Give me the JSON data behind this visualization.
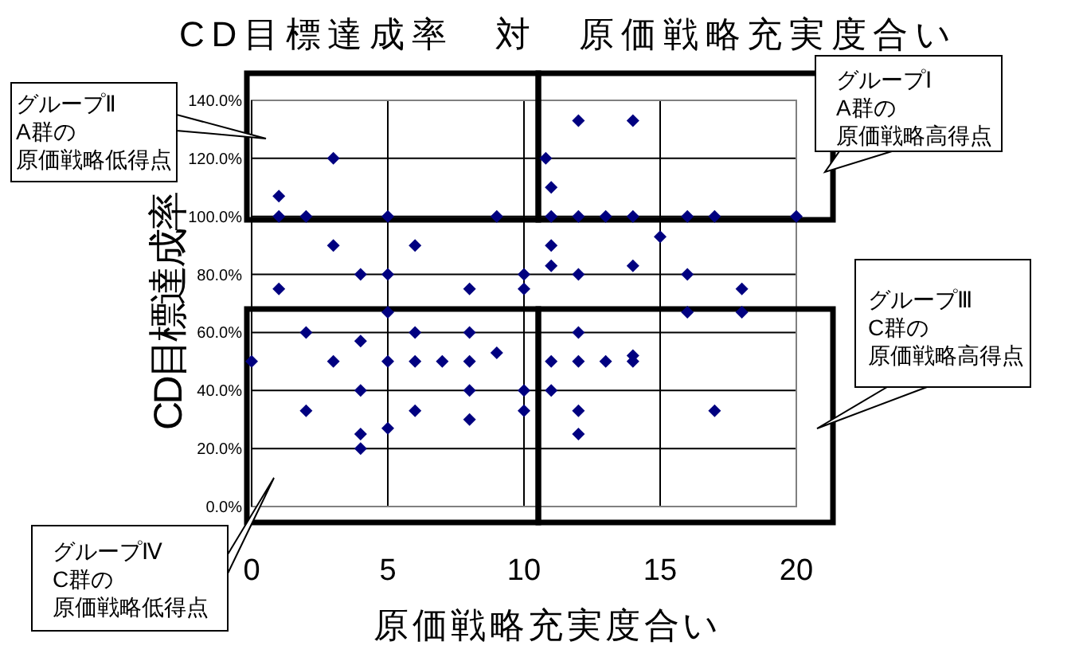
{
  "chart_data": {
    "type": "scatter",
    "title": "CD目標達成率　対　原価戦略充実度合い",
    "xlabel": "原価戦略充実度合い",
    "ylabel": "CD目標達成率",
    "x": [
      0,
      1,
      1,
      1,
      2,
      2,
      2,
      3,
      3,
      3,
      4,
      4,
      4,
      4,
      4,
      5,
      5,
      5,
      5,
      5,
      6,
      6,
      6,
      6,
      7,
      8,
      8,
      8,
      8,
      8,
      9,
      9,
      10,
      10,
      10,
      10,
      10.8,
      11,
      11,
      11,
      11,
      11,
      11,
      12,
      12,
      12,
      12,
      12,
      12,
      12,
      13,
      13,
      14,
      14,
      14,
      14,
      14,
      15,
      16,
      16,
      16,
      17,
      17,
      18,
      18,
      20
    ],
    "values": [
      50,
      107,
      100,
      75,
      100,
      60,
      33,
      120,
      90,
      50,
      80,
      57,
      40,
      25,
      20,
      100,
      80,
      67,
      50,
      27,
      90,
      60,
      50,
      33,
      50,
      75,
      60,
      50,
      40,
      30,
      100,
      53,
      80,
      75,
      40,
      33,
      120,
      110,
      100,
      90,
      83,
      50,
      40,
      133,
      100,
      80,
      60,
      50,
      33,
      25,
      100,
      50,
      133,
      100,
      83,
      52,
      50,
      93,
      100,
      80,
      67,
      100,
      33,
      75,
      67,
      100
    ],
    "color": "#000080",
    "marker": "diamond",
    "xlim": [
      0,
      20
    ],
    "xticks": [
      0,
      5,
      10,
      15,
      20
    ],
    "ylim": [
      0,
      140
    ],
    "yticks": [
      {
        "value": 0,
        "label": "0.0%"
      },
      {
        "value": 20,
        "label": "20.0%"
      },
      {
        "value": 40,
        "label": "40.0%"
      },
      {
        "value": 60,
        "label": "60.0%"
      },
      {
        "value": 80,
        "label": "80.0%"
      },
      {
        "value": 100,
        "label": "100.0%"
      },
      {
        "value": 120,
        "label": "120.0%"
      },
      {
        "value": 140,
        "label": "140.0%"
      }
    ],
    "grid": true,
    "annotations": [
      "グループⅡ",
      "A群の",
      "原価戦略低得点",
      "グループⅠ",
      "A群の",
      "原価戦略高得点",
      "グループⅢ",
      "C群の",
      "原価戦略高得点",
      "グループⅣ",
      "C群の",
      "原価戦略低得点"
    ]
  }
}
